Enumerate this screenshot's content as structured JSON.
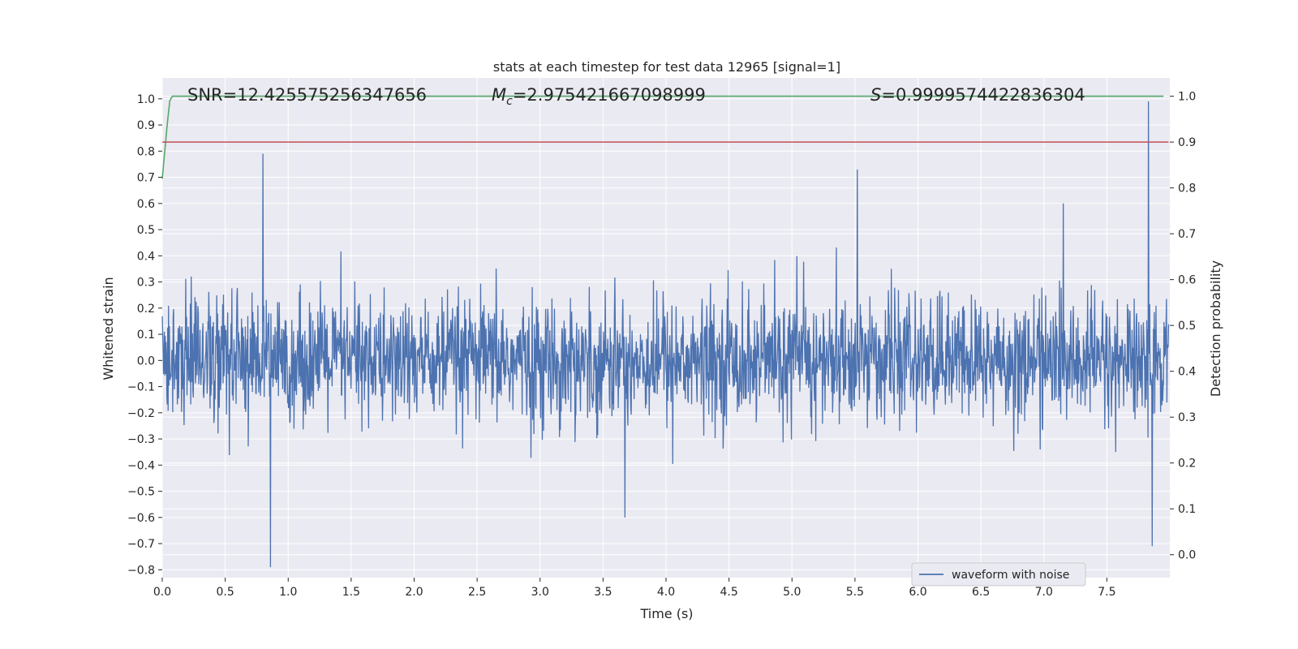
{
  "chart_data": {
    "type": "line",
    "title": "stats at each timestep for test data 12965 [signal=1]",
    "xlabel": "Time (s)",
    "ylabel_left": "Whitened strain",
    "ylabel_right": "Detection probability",
    "xlim": [
      0.0,
      8.0
    ],
    "ylim_left": [
      -0.83,
      1.08
    ],
    "ylim_right": [
      -0.05,
      1.04
    ],
    "x_ticks": [
      "0.0",
      "0.5",
      "1.0",
      "1.5",
      "2.0",
      "2.5",
      "3.0",
      "3.5",
      "4.0",
      "4.5",
      "5.0",
      "5.5",
      "6.0",
      "6.5",
      "7.0",
      "7.5"
    ],
    "y_left_ticks": [
      "−0.8",
      "−0.7",
      "−0.6",
      "−0.5",
      "−0.4",
      "−0.3",
      "−0.2",
      "−0.1",
      "0.0",
      "0.1",
      "0.2",
      "0.3",
      "0.4",
      "0.5",
      "0.6",
      "0.7",
      "0.8",
      "0.9",
      "1.0"
    ],
    "y_right_ticks": [
      "0.0",
      "0.1",
      "0.2",
      "0.3",
      "0.4",
      "0.5",
      "0.6",
      "0.7",
      "0.8",
      "0.9",
      "1.0"
    ],
    "grid": true,
    "legend": {
      "entries": [
        "waveform with noise"
      ],
      "placement": "lower-right"
    },
    "annotations": {
      "snr": "SNR=12.425575256347656",
      "mc_symbol": "M",
      "mc_sub": "c",
      "mc_value": "=2.975421667098999",
      "s_symbol": "S",
      "s_value": "=0.9999574422836304"
    },
    "series": [
      {
        "name": "waveform with noise",
        "axis": "left",
        "color": "#4c72b0",
        "description_points": {
          "x_range": [
            0.0,
            7.99
          ],
          "typical_envelope": [
            -0.27,
            0.29
          ],
          "peaks": [
            {
              "x": 0.8,
              "y": 0.79
            },
            {
              "x": 0.86,
              "y": -0.79
            },
            {
              "x": 5.52,
              "y": 0.73
            },
            {
              "x": 7.83,
              "y": 0.99
            },
            {
              "x": 7.86,
              "y": -0.71
            }
          ]
        }
      },
      {
        "name": "",
        "axis": "right",
        "color": "#55a868",
        "x": [
          0.0,
          0.02,
          0.04,
          0.06,
          0.08,
          0.1,
          2.0,
          4.0,
          6.0,
          7.95
        ],
        "y": [
          0.82,
          0.88,
          0.94,
          0.99,
          1.0,
          1.0,
          1.0,
          1.0,
          1.0,
          1.0
        ]
      },
      {
        "name": "",
        "axis": "right",
        "color": "#c44e52",
        "x": [
          0.0,
          7.99
        ],
        "y": [
          0.9,
          0.9
        ]
      }
    ]
  }
}
